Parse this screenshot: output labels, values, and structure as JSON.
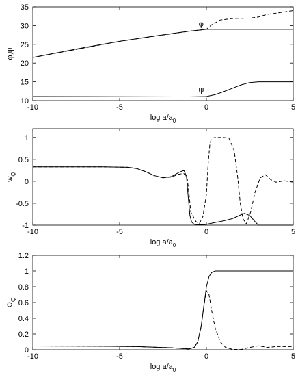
{
  "chart_data": [
    {
      "type": "line",
      "xlabel": "log a/a",
      "xlabel_sub": "0",
      "ylabel": "φ,ψ",
      "xlim": [
        -10,
        5
      ],
      "ylim": [
        10,
        35
      ],
      "xticks": [
        -10,
        -5,
        0,
        5
      ],
      "yticks": [
        10,
        15,
        20,
        25,
        30,
        35
      ],
      "annotations": [
        {
          "text": "φ",
          "x": -0.3,
          "y": 29.8
        },
        {
          "text": "ψ",
          "x": -0.3,
          "y": 12.2
        }
      ],
      "series": [
        {
          "style": "solid",
          "x": [
            -10,
            -7,
            -5,
            -3,
            -1,
            0,
            1,
            3,
            5
          ],
          "y": [
            21.5,
            24.2,
            25.8,
            27.2,
            28.5,
            29,
            29,
            29,
            29
          ]
        },
        {
          "style": "dashed",
          "x": [
            -10,
            -5,
            -1,
            0,
            0.3,
            0.8,
            1.5,
            2.5,
            3,
            3.5,
            4,
            5
          ],
          "y": [
            21.5,
            25.8,
            28.5,
            29,
            30.2,
            31.5,
            31.9,
            32,
            32.3,
            33,
            33.3,
            34
          ]
        },
        {
          "style": "solid",
          "x": [
            -10,
            -5,
            -1,
            0,
            0.5,
            1,
            1.5,
            2,
            2.5,
            3,
            5
          ],
          "y": [
            11.1,
            11.05,
            11.0,
            11.1,
            11.6,
            12.4,
            13.3,
            14.2,
            14.8,
            15.0,
            15.0
          ]
        },
        {
          "style": "dashed",
          "x": [
            -10,
            -5,
            -1,
            0,
            1,
            3,
            5
          ],
          "y": [
            11.0,
            11.0,
            11.0,
            11.0,
            11.0,
            11.0,
            11.0
          ]
        }
      ]
    },
    {
      "type": "line",
      "xlabel": "log a/a",
      "xlabel_sub": "0",
      "ylabel": "w",
      "ylabel_sub": "Q",
      "xlim": [
        -10,
        5
      ],
      "ylim": [
        -1,
        1.2
      ],
      "xticks": [
        -10,
        -5,
        0,
        5
      ],
      "yticks": [
        -1,
        -0.5,
        0,
        0.5,
        1
      ],
      "series": [
        {
          "style": "solid",
          "x": [
            -10,
            -6,
            -4.5,
            -4,
            -3.5,
            -3,
            -2.5,
            -2,
            -1.6,
            -1.3,
            -1.15,
            -1.05,
            -0.95,
            -0.85,
            -0.7,
            -0.5,
            -0.2,
            0,
            0.5,
            1,
            1.5,
            2,
            2.2,
            2.5,
            2.8,
            3,
            5
          ],
          "y": [
            0.33,
            0.33,
            0.32,
            0.29,
            0.22,
            0.13,
            0.08,
            0.11,
            0.2,
            0.25,
            0.12,
            -0.35,
            -0.78,
            -0.93,
            -0.98,
            -0.99,
            -0.99,
            -0.98,
            -0.94,
            -0.9,
            -0.85,
            -0.76,
            -0.73,
            -0.78,
            -0.92,
            -1,
            -1
          ]
        },
        {
          "style": "dashed",
          "x": [
            -10,
            -6,
            -4.5,
            -4,
            -3.5,
            -3,
            -2.5,
            -2,
            -1.6,
            -1.3,
            -1.1,
            -1,
            -0.9,
            -0.6,
            -0.4,
            -0.2,
            0,
            0.1,
            0.2,
            0.3,
            0.5,
            1,
            1.3,
            1.6,
            1.8,
            1.95,
            2.1,
            2.3,
            2.55,
            2.8,
            3.1,
            3.4,
            3.7,
            4,
            4.5,
            5
          ],
          "y": [
            0.33,
            0.33,
            0.32,
            0.29,
            0.22,
            0.13,
            0.08,
            0.1,
            0.16,
            0.18,
            0.05,
            -0.3,
            -0.7,
            -0.92,
            -0.96,
            -0.8,
            -0.3,
            0.4,
            0.85,
            0.98,
            1,
            1,
            0.98,
            0.7,
            0.1,
            -0.5,
            -0.85,
            -0.97,
            -0.7,
            -0.25,
            0.08,
            0.15,
            0.04,
            -0.02,
            0.01,
            -0.02
          ]
        }
      ]
    },
    {
      "type": "line",
      "xlabel": "log a/a",
      "xlabel_sub": "0",
      "ylabel": "Ω",
      "ylabel_sub": "Q",
      "xlim": [
        -10,
        5
      ],
      "ylim": [
        0,
        1.2
      ],
      "xticks": [
        -10,
        -5,
        0,
        5
      ],
      "yticks": [
        0,
        0.2,
        0.4,
        0.6,
        0.8,
        1,
        1.2
      ],
      "series": [
        {
          "style": "solid",
          "x": [
            -10,
            -6,
            -4,
            -2,
            -1,
            -0.7,
            -0.5,
            -0.3,
            -0.15,
            0,
            0.15,
            0.3,
            0.5,
            1,
            5
          ],
          "y": [
            0.048,
            0.045,
            0.04,
            0.025,
            0.01,
            0.03,
            0.1,
            0.3,
            0.55,
            0.8,
            0.93,
            0.98,
            1.0,
            1.0,
            1.0
          ]
        },
        {
          "style": "dashed",
          "x": [
            -10,
            -6,
            -4,
            -2,
            -1,
            -0.7,
            -0.5,
            -0.3,
            -0.15,
            0,
            0.15,
            0.3,
            0.5,
            0.8,
            1.1,
            1.5,
            2,
            2.5,
            3,
            3.5,
            4,
            5
          ],
          "y": [
            0.048,
            0.045,
            0.04,
            0.025,
            0.01,
            0.03,
            0.1,
            0.3,
            0.55,
            0.75,
            0.7,
            0.5,
            0.28,
            0.1,
            0.03,
            0.005,
            0.003,
            0.03,
            0.05,
            0.03,
            0.04,
            0.04
          ]
        }
      ]
    }
  ]
}
